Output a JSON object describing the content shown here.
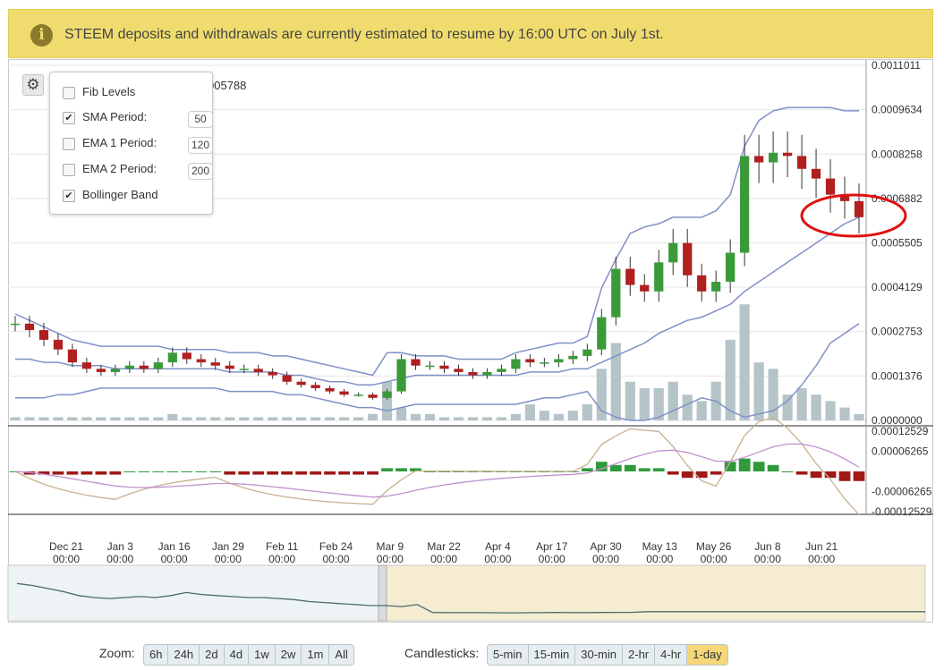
{
  "banner": {
    "icon": "info-icon",
    "message": "STEEM deposits and withdrawals are currently estimated to resume by 16:00 UTC on July 1st."
  },
  "last_price_fragment": "005788",
  "settings": {
    "gear_icon": "gear-icon",
    "fib": {
      "label": "Fib Levels",
      "checked": false
    },
    "sma": {
      "label": "SMA Period:",
      "checked": true,
      "value": "50"
    },
    "ema1": {
      "label": "EMA 1 Period:",
      "checked": false,
      "value": "120"
    },
    "ema2": {
      "label": "EMA 2 Period:",
      "checked": false,
      "value": "200"
    },
    "bb": {
      "label": "Bollinger Band",
      "checked": true
    }
  },
  "zoom": {
    "label": "Zoom:",
    "options": [
      "6h",
      "24h",
      "2d",
      "4d",
      "1w",
      "2w",
      "1m",
      "All"
    ]
  },
  "candles": {
    "label": "Candlesticks:",
    "options": [
      "5-min",
      "15-min",
      "30-min",
      "2-hr",
      "4-hr",
      "1-day"
    ],
    "active": "1-day"
  },
  "colors": {
    "up": "#3a9a3a",
    "down": "#b02020",
    "band": "#8090c8",
    "volume": "#b4c4c8",
    "macd_up": "#2f9a3a",
    "macd_down": "#a01818",
    "macd_line": "#c8b090",
    "signal_line": "#c090d0",
    "annotation": "#e01010",
    "nav_bg_left": "#eef3f5",
    "nav_bg_right": "#f5ecd2"
  },
  "chart_data": {
    "type": "candlestick",
    "price_ticks": [
      "0.0011011",
      "0.0009634",
      "0.0008258",
      "0.0006882",
      "0.0005505",
      "0.0004129",
      "0.0002753",
      "0.0001376",
      "0.0000000"
    ],
    "price_ylim": [
      0,
      0.0011011
    ],
    "macd_ticks": [
      "0.00012529",
      "0.00006265",
      "-0.00006265",
      "-0.00012529"
    ],
    "macd_ylim": [
      -0.00012529,
      0.00012529
    ],
    "x_labels": [
      {
        "date": "Dec 21",
        "time": "00:00"
      },
      {
        "date": "Jan 3",
        "time": "00:00"
      },
      {
        "date": "Jan 16",
        "time": "00:00"
      },
      {
        "date": "Jan 29",
        "time": "00:00"
      },
      {
        "date": "Feb 11",
        "time": "00:00"
      },
      {
        "date": "Feb 24",
        "time": "00:00"
      },
      {
        "date": "Mar 9",
        "time": "00:00"
      },
      {
        "date": "Mar 22",
        "time": "00:00"
      },
      {
        "date": "Apr 4",
        "time": "00:00"
      },
      {
        "date": "Apr 17",
        "time": "00:00"
      },
      {
        "date": "Apr 30",
        "time": "00:00"
      },
      {
        "date": "May 13",
        "time": "00:00"
      },
      {
        "date": "May 26",
        "time": "00:00"
      },
      {
        "date": "Jun 8",
        "time": "00:00"
      },
      {
        "date": "Jun 21",
        "time": "00:00"
      }
    ],
    "close_series": [
      0.0003,
      0.00028,
      0.00025,
      0.00022,
      0.00018,
      0.00016,
      0.00015,
      0.00016,
      0.00017,
      0.00016,
      0.00018,
      0.00021,
      0.00019,
      0.00018,
      0.00017,
      0.00016,
      0.00016,
      0.00015,
      0.00014,
      0.00012,
      0.00011,
      0.0001,
      9e-05,
      8e-05,
      8e-05,
      7e-05,
      9e-05,
      0.00019,
      0.00017,
      0.00017,
      0.00016,
      0.00015,
      0.00014,
      0.00015,
      0.00016,
      0.00019,
      0.00018,
      0.00018,
      0.00019,
      0.0002,
      0.00022,
      0.00032,
      0.00047,
      0.00042,
      0.0004,
      0.00049,
      0.00055,
      0.00045,
      0.0004,
      0.00043,
      0.00052,
      0.00082,
      0.0008,
      0.00083,
      0.00082,
      0.00078,
      0.00075,
      0.0007,
      0.00068,
      0.00063
    ],
    "sma_series": [
      0.00019,
      0.00019,
      0.00018,
      0.00018,
      0.00017,
      0.00017,
      0.00017,
      0.00016,
      0.00016,
      0.00016,
      0.00016,
      0.00016,
      0.00016,
      0.00016,
      0.00016,
      0.00015,
      0.00015,
      0.00015,
      0.00015,
      0.00014,
      0.00014,
      0.00013,
      0.00012,
      0.00012,
      0.00011,
      0.00011,
      0.00012,
      0.00013,
      0.00014,
      0.00014,
      0.00014,
      0.00014,
      0.00014,
      0.00014,
      0.00014,
      0.00014,
      0.00015,
      0.00015,
      0.00015,
      0.00016,
      0.00016,
      0.00018,
      0.0002,
      0.00022,
      0.00024,
      0.00027,
      0.00029,
      0.00031,
      0.00032,
      0.00034,
      0.00036,
      0.0004,
      0.00043,
      0.00046,
      0.00049,
      0.00052,
      0.00055,
      0.00058,
      0.00061,
      0.00063
    ],
    "band_upper": [
      0.00033,
      0.00031,
      0.00029,
      0.00027,
      0.00025,
      0.00024,
      0.00023,
      0.00023,
      0.00023,
      0.00023,
      0.00023,
      0.00022,
      0.00022,
      0.00022,
      0.00022,
      0.00021,
      0.00021,
      0.00021,
      0.0002,
      0.0002,
      0.00019,
      0.00018,
      0.00017,
      0.00016,
      0.00015,
      0.00014,
      0.00021,
      0.00021,
      0.0002,
      0.0002,
      0.0002,
      0.00019,
      0.00019,
      0.00019,
      0.00019,
      0.00021,
      0.00022,
      0.00023,
      0.00024,
      0.00024,
      0.00026,
      0.00041,
      0.0005,
      0.00058,
      0.0006,
      0.00061,
      0.00063,
      0.00063,
      0.00063,
      0.00065,
      0.0007,
      0.00085,
      0.00093,
      0.00096,
      0.00097,
      0.00097,
      0.00097,
      0.00097,
      0.00096,
      0.00096
    ],
    "band_lower": [
      7e-05,
      7e-05,
      7e-05,
      8e-05,
      8e-05,
      9e-05,
      0.0001,
      0.0001,
      0.0001,
      0.0001,
      0.0001,
      0.0001,
      0.0001,
      0.0001,
      0.0001,
      9e-05,
      9e-05,
      9e-05,
      9e-05,
      8e-05,
      8e-05,
      7e-05,
      6e-05,
      5e-05,
      4e-05,
      4e-05,
      3e-05,
      4e-05,
      5e-05,
      5e-05,
      5e-05,
      5e-05,
      5e-05,
      5e-05,
      5e-05,
      5e-05,
      6e-05,
      7e-05,
      7e-05,
      8e-05,
      9e-05,
      3e-05,
      1e-05,
      0.0,
      0.0,
      1e-05,
      3e-05,
      5e-05,
      7e-05,
      6e-05,
      3e-05,
      1e-05,
      2e-05,
      3e-05,
      6e-05,
      0.00011,
      0.00017,
      0.00024,
      0.00027,
      0.0003
    ],
    "volume_series": [
      1e-05,
      1e-05,
      1e-05,
      1e-05,
      1e-05,
      1e-05,
      1e-05,
      1e-05,
      1e-05,
      1e-05,
      1e-05,
      2e-05,
      1e-05,
      1e-05,
      1e-05,
      1e-05,
      1e-05,
      1e-05,
      1e-05,
      1e-05,
      1e-05,
      1e-05,
      1e-05,
      1e-05,
      1e-05,
      2e-05,
      0.00012,
      4e-05,
      2e-05,
      2e-05,
      1e-05,
      1e-05,
      1e-05,
      1e-05,
      1e-05,
      2e-05,
      5e-05,
      3e-05,
      2e-05,
      3e-05,
      5e-05,
      0.00016,
      0.00024,
      0.00012,
      0.0001,
      0.0001,
      0.00012,
      8e-05,
      6e-05,
      0.00012,
      0.00025,
      0.00036,
      0.00018,
      0.00016,
      8e-05,
      0.0001,
      8e-05,
      6e-05,
      4e-05,
      2e-05
    ],
    "macd_hist": [
      0.0,
      -1e-05,
      -1e-05,
      -1e-05,
      -1e-05,
      -1e-05,
      -1e-05,
      -1e-05,
      0.0,
      0.0,
      0.0,
      0.0,
      0.0,
      0.0,
      0.0,
      -1e-05,
      -1e-05,
      -1e-05,
      -1e-05,
      -1e-05,
      -1e-05,
      -1e-05,
      -1e-05,
      -1e-05,
      -1e-05,
      -1e-05,
      1e-05,
      1e-05,
      1e-05,
      0.0,
      0.0,
      0.0,
      0.0,
      0.0,
      0.0,
      0.0,
      0.0,
      0.0,
      0.0,
      0.0,
      1e-05,
      3e-05,
      2e-05,
      2e-05,
      1e-05,
      1e-05,
      -1e-05,
      -2e-05,
      -2e-05,
      -1e-05,
      3e-05,
      4e-05,
      3e-05,
      2e-05,
      0.0,
      -1e-05,
      -2e-05,
      -2e-05,
      -3e-05,
      -3e-05
    ],
    "annotation": "red-ellipse-circled-latest-candles"
  }
}
